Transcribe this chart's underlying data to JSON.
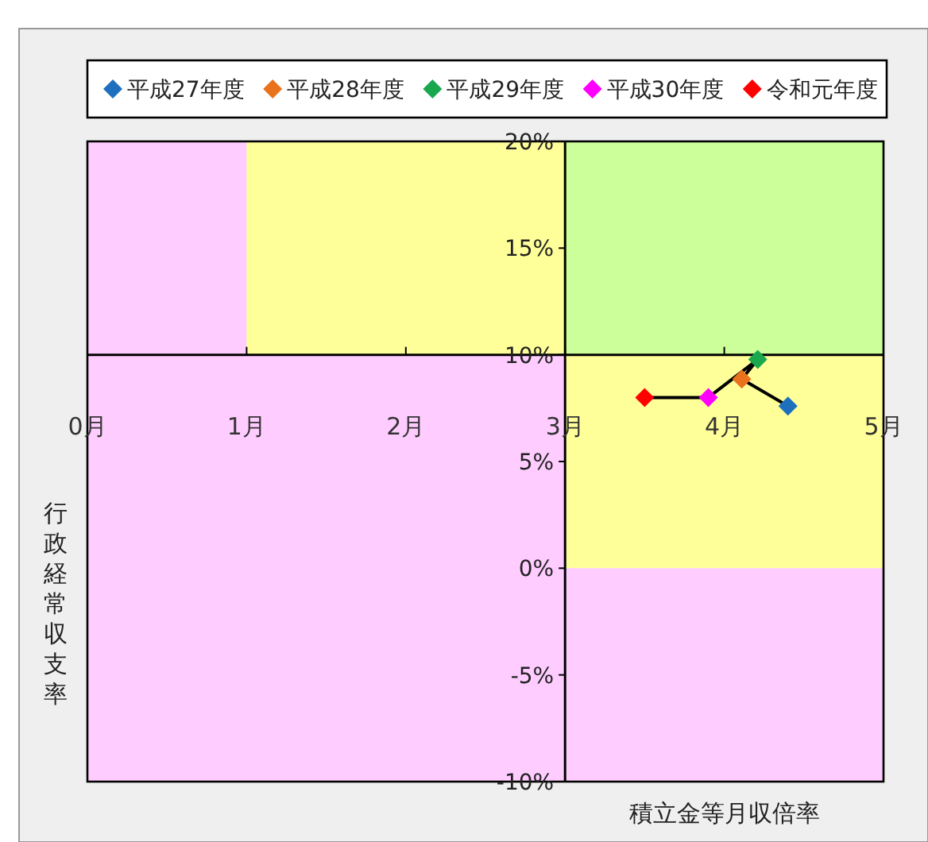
{
  "chart_data": {
    "type": "scatter",
    "xlabel": "積立金等月収倍率",
    "ylabel": "行政経常収支率",
    "xlim": [
      0,
      5
    ],
    "ylim": [
      -10,
      20
    ],
    "xticks": [
      {
        "value": 0,
        "label": "0月"
      },
      {
        "value": 1,
        "label": "1月"
      },
      {
        "value": 2,
        "label": "2月"
      },
      {
        "value": 3,
        "label": "3月"
      },
      {
        "value": 4,
        "label": "4月"
      },
      {
        "value": 5,
        "label": "5月"
      }
    ],
    "yticks": [
      {
        "value": -10,
        "label": "-10%"
      },
      {
        "value": -5,
        "label": "-5%"
      },
      {
        "value": 0,
        "label": "0%"
      },
      {
        "value": 5,
        "label": "5%"
      },
      {
        "value": 10,
        "label": "10%"
      },
      {
        "value": 15,
        "label": "15%"
      },
      {
        "value": 20,
        "label": "20%"
      }
    ],
    "legend": "top",
    "marker": "diamond",
    "grid": false,
    "series": [
      {
        "type": "line",
        "color": "#000000",
        "marker": "none",
        "x": [
          4.4,
          4.11,
          4.21,
          3.9,
          3.5
        ],
        "values": [
          7.6,
          8.86,
          9.78,
          8.0,
          8.0
        ]
      },
      {
        "name": "平成27年度",
        "color": "#1f6fbf",
        "x": [
          4.4
        ],
        "values": [
          7.6
        ]
      },
      {
        "name": "平成28年度",
        "color": "#e8731c",
        "x": [
          4.11
        ],
        "values": [
          8.86
        ]
      },
      {
        "name": "平成29年度",
        "color": "#1aa84f",
        "x": [
          4.21
        ],
        "values": [
          9.78
        ]
      },
      {
        "name": "平成30年度",
        "color": "#ff00ff",
        "x": [
          3.9
        ],
        "values": [
          8.0
        ]
      },
      {
        "name": "令和元年度",
        "color": "#ff0000",
        "x": [
          3.5
        ],
        "values": [
          8.0
        ]
      }
    ]
  }
}
